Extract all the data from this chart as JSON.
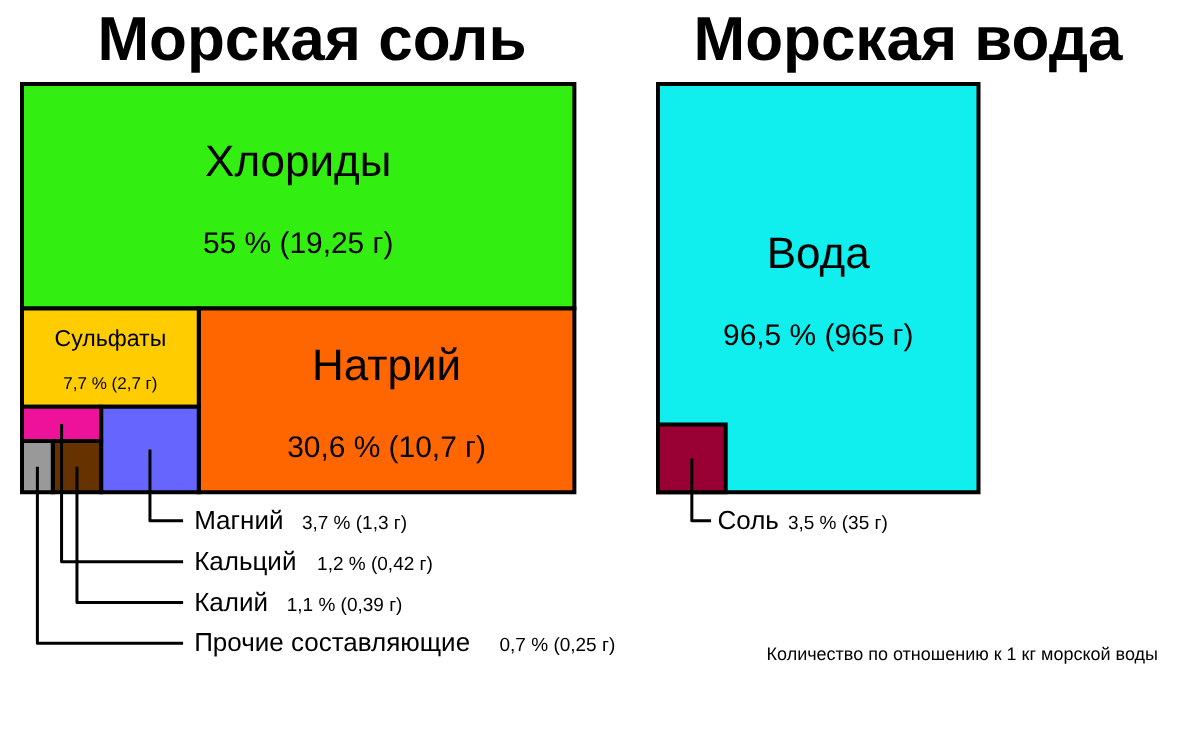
{
  "chart_data": [
    {
      "type": "other",
      "title": "Морская соль",
      "categories": [
        "Хлориды",
        "Натрий",
        "Сульфаты",
        "Магний",
        "Кальций",
        "Калий",
        "Прочие составляющие"
      ],
      "values": [
        55,
        30.6,
        7.7,
        3.7,
        1.2,
        1.1,
        0.7
      ],
      "value_labels": [
        "55 % (19,25 г)",
        "30,6 % (10,7 г)",
        "7,7 % (2,7 г)",
        "3,7 % (1,3 г)",
        "1,2 % (0,42 г)",
        "1,1 % (0,39 г)",
        "0,7 % (0,25 г)"
      ],
      "colors": [
        "#33ee11",
        "#ff6600",
        "#ffcc00",
        "#6666ff",
        "#ee1199",
        "#663300",
        "#999999"
      ]
    },
    {
      "type": "other",
      "title": "Морская вода",
      "categories": [
        "Вода",
        "Соль"
      ],
      "values": [
        96.5,
        3.5
      ],
      "value_labels": [
        "96,5 % (965 г)",
        "3,5 % (35 г)"
      ],
      "colors": [
        "#11eeee",
        "#990033"
      ],
      "annotations": [
        "Количество по отношению к 1 кг морской воды"
      ]
    }
  ]
}
